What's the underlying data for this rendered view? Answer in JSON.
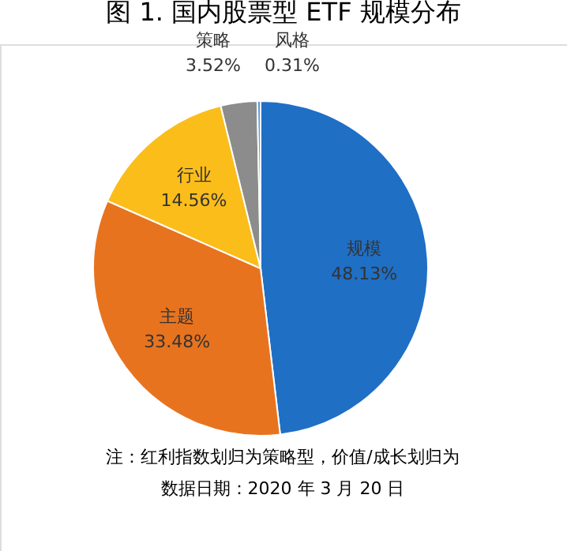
{
  "chart_data": {
    "type": "pie",
    "title": "图 1.  国内股票型 ETF 规模分布",
    "categories": [
      "规模",
      "主题",
      "行业",
      "策略",
      "风格"
    ],
    "values": [
      48.13,
      33.48,
      14.56,
      3.52,
      0.31
    ],
    "value_labels": [
      "48.13%",
      "33.48%",
      "14.56%",
      "3.52%",
      "0.31%"
    ],
    "colors": [
      "#1f6fc5",
      "#e8731f",
      "#fbbd1a",
      "#8c8c8c",
      "#5b9bd5"
    ],
    "legend": false,
    "annotations": [
      "注：红利指数划归为策略型，价值/成长划归为",
      "数据日期：2020 年 3 月 20 日"
    ]
  }
}
